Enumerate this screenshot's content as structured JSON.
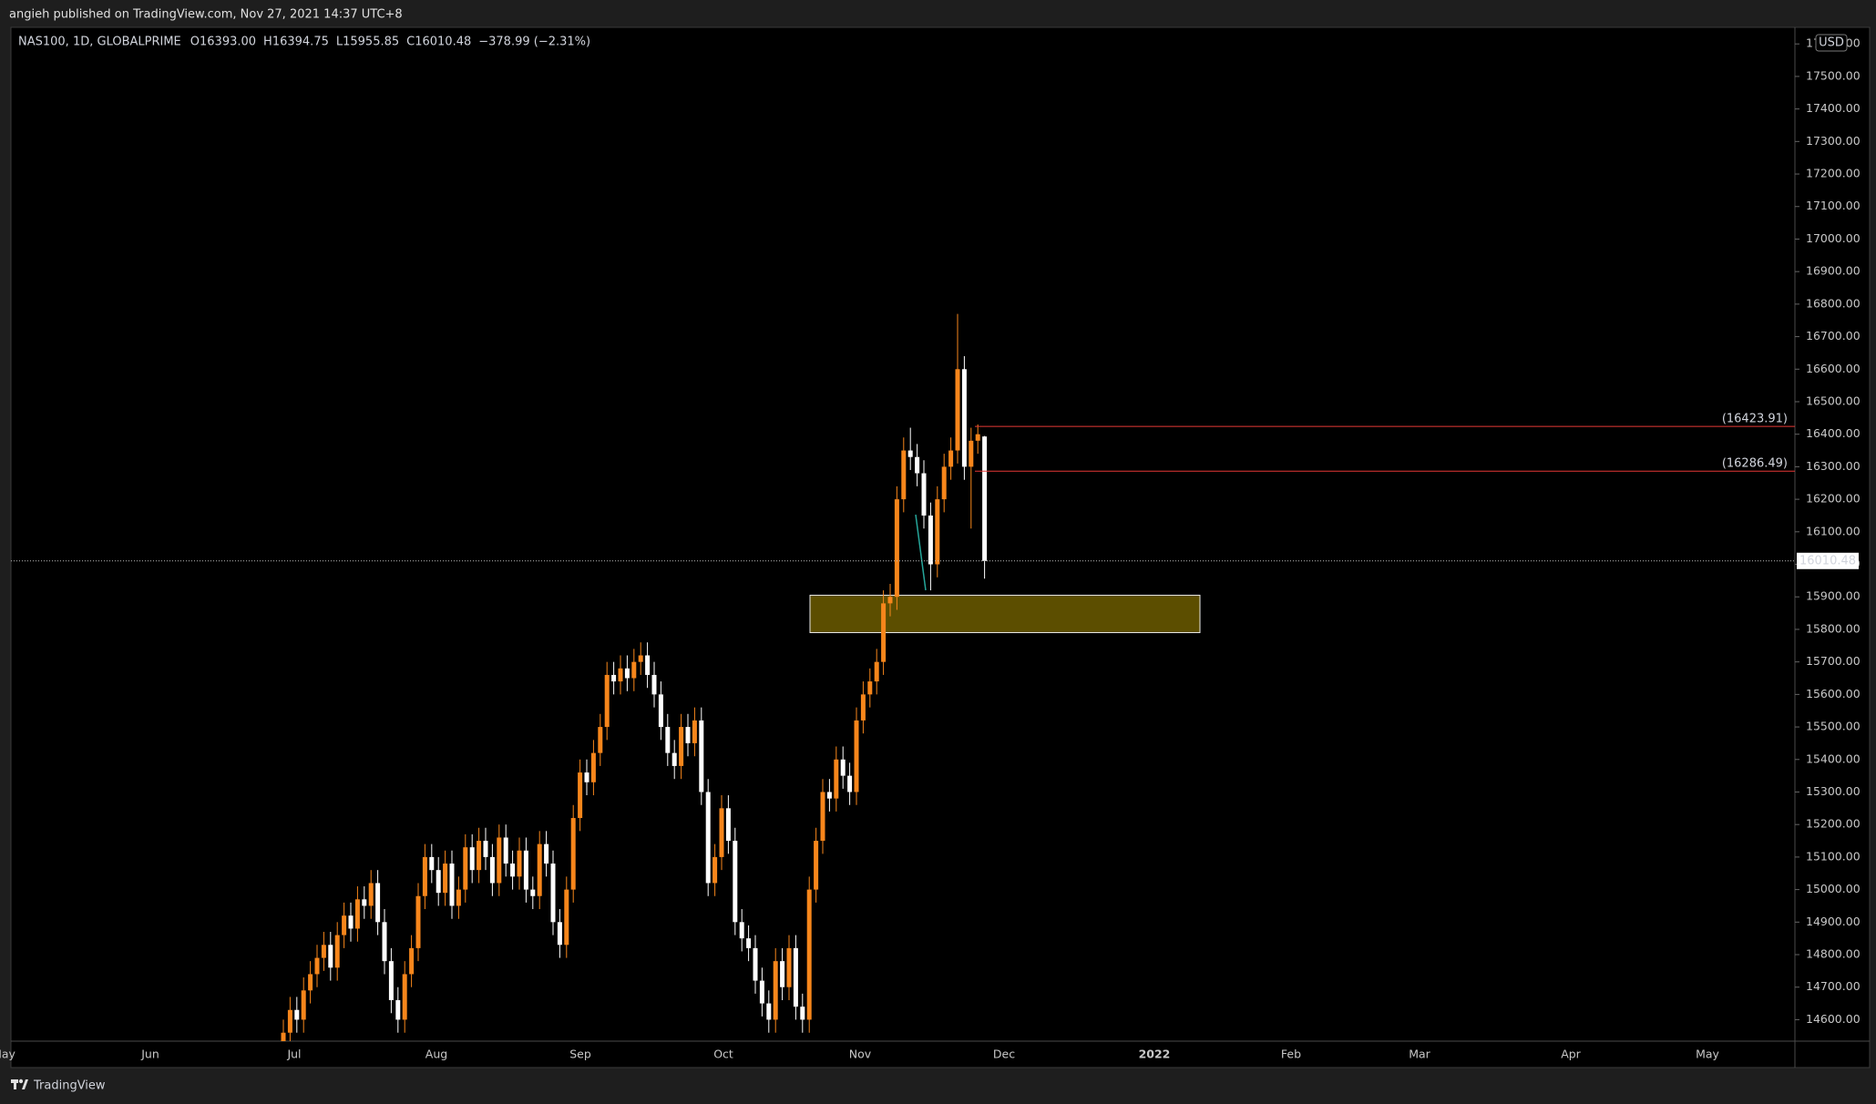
{
  "header": {
    "publisher": "angieh published on TradingView.com, Nov 27, 2021 14:37 UTC+8"
  },
  "chart_data": {
    "type": "candlestick",
    "symbol": "NAS100, 1D, GLOBALPRIME",
    "legend_values": [
      {
        "label": "O",
        "value": "16393.00"
      },
      {
        "label": "H",
        "value": "16394.75"
      },
      {
        "label": "L",
        "value": "15955.85"
      },
      {
        "label": "C",
        "value": "16010.48"
      }
    ],
    "change": "−378.99 (−2.31%)",
    "currency": "USD",
    "up_color": "#f7861b",
    "down_color": "#ffffff",
    "open": [
      14500,
      14560,
      14630,
      14600,
      14690,
      14740,
      14790,
      14830,
      14760,
      14860,
      14920,
      14880,
      14970,
      14950,
      15020,
      14900,
      14780,
      14660,
      14600,
      14740,
      14820,
      14980,
      15100,
      15060,
      14990,
      15080,
      14950,
      15000,
      15130,
      15060,
      15150,
      15100,
      15020,
      15160,
      15080,
      15040,
      15120,
      15000,
      14980,
      15140,
      15080,
      14900,
      14830,
      15000,
      15220,
      15360,
      15330,
      15420,
      15500,
      15660,
      15640,
      15680,
      15650,
      15700,
      15720,
      15660,
      15600,
      15500,
      15420,
      15380,
      15500,
      15450,
      15520,
      15300,
      15020,
      15100,
      15250,
      15150,
      14900,
      14850,
      14820,
      14720,
      14650,
      14600,
      14780,
      14700,
      14820,
      14640,
      14600,
      15000,
      15150,
      15300,
      15280,
      15400,
      15350,
      15300,
      15520,
      15600,
      15640,
      15700,
      15880,
      15900,
      16200,
      16350,
      16330,
      16280,
      16150,
      16000,
      16200,
      16300,
      16350,
      16600,
      16300,
      16380,
      16393
    ],
    "high": [
      14600,
      14670,
      14670,
      14730,
      14780,
      14830,
      14870,
      14870,
      14900,
      14960,
      14960,
      15010,
      15010,
      15060,
      15060,
      14940,
      14820,
      14700,
      14780,
      14860,
      15020,
      15140,
      15140,
      15100,
      15120,
      15120,
      15040,
      15170,
      15170,
      15190,
      15190,
      15140,
      15200,
      15200,
      15120,
      15160,
      15160,
      15040,
      15180,
      15180,
      15120,
      14940,
      15040,
      15260,
      15400,
      15400,
      15460,
      15540,
      15700,
      15700,
      15720,
      15720,
      15740,
      15760,
      15760,
      15700,
      15640,
      15540,
      15460,
      15540,
      15540,
      15560,
      15560,
      15340,
      15140,
      15290,
      15290,
      15190,
      14940,
      14890,
      14860,
      14760,
      14690,
      14820,
      14820,
      14860,
      14860,
      14680,
      15040,
      15190,
      15340,
      15340,
      15440,
      15440,
      15390,
      15560,
      15640,
      15680,
      15740,
      15920,
      15940,
      16240,
      16390,
      16420,
      16370,
      16320,
      16190,
      16240,
      16340,
      16390,
      16770,
      16640,
      16420,
      16430,
      16394.75
    ],
    "low": [
      14460,
      14520,
      14560,
      14560,
      14650,
      14700,
      14750,
      14720,
      14720,
      14820,
      14840,
      14840,
      14910,
      14910,
      14860,
      14740,
      14620,
      14560,
      14560,
      14700,
      14780,
      14940,
      15020,
      14950,
      14950,
      14910,
      14910,
      14960,
      15020,
      15020,
      15060,
      14980,
      14980,
      15040,
      15000,
      15000,
      14960,
      14940,
      14940,
      15040,
      14860,
      14790,
      14790,
      14960,
      15180,
      15290,
      15290,
      15380,
      15460,
      15600,
      15600,
      15610,
      15610,
      15660,
      15620,
      15560,
      15460,
      15380,
      15340,
      15340,
      15410,
      15410,
      15260,
      14980,
      14980,
      15060,
      15110,
      14860,
      14810,
      14780,
      14680,
      14610,
      14560,
      14560,
      14660,
      14660,
      14600,
      14560,
      14560,
      14960,
      15110,
      15240,
      15240,
      15310,
      15260,
      15260,
      15480,
      15560,
      15600,
      15660,
      15840,
      15860,
      16160,
      16290,
      16240,
      16110,
      15920,
      15960,
      16160,
      16260,
      16310,
      16260,
      16110,
      16340,
      15955.85
    ],
    "close": [
      14560,
      14630,
      14600,
      14690,
      14740,
      14790,
      14830,
      14760,
      14860,
      14920,
      14880,
      14970,
      14950,
      15020,
      14900,
      14780,
      14660,
      14600,
      14740,
      14820,
      14980,
      15100,
      15060,
      14990,
      15080,
      14950,
      15000,
      15130,
      15060,
      15150,
      15100,
      15020,
      15160,
      15080,
      15040,
      15120,
      15000,
      14980,
      15140,
      15080,
      14900,
      14830,
      15000,
      15220,
      15360,
      15330,
      15420,
      15500,
      15660,
      15640,
      15680,
      15650,
      15700,
      15720,
      15660,
      15600,
      15500,
      15420,
      15380,
      15500,
      15450,
      15520,
      15300,
      15020,
      15100,
      15250,
      15150,
      14900,
      14850,
      14820,
      14720,
      14650,
      14600,
      14780,
      14700,
      14820,
      14640,
      14600,
      15000,
      15150,
      15300,
      15280,
      15400,
      15350,
      15300,
      15520,
      15600,
      15640,
      15700,
      15880,
      15900,
      16200,
      16350,
      16330,
      16280,
      16150,
      16000,
      16200,
      16300,
      16350,
      16600,
      16300,
      16380,
      16400,
      16010.48
    ],
    "ylim": [
      14534,
      17651
    ],
    "yticks": [
      {
        "value": 14600,
        "label": "14600.00"
      },
      {
        "value": 14700,
        "label": "14700.00"
      },
      {
        "value": 14800,
        "label": "14800.00"
      },
      {
        "value": 14900,
        "label": "14900.00"
      },
      {
        "value": 15000,
        "label": "15000.00"
      },
      {
        "value": 15100,
        "label": "15100.00"
      },
      {
        "value": 15200,
        "label": "15200.00"
      },
      {
        "value": 15300,
        "label": "15300.00"
      },
      {
        "value": 15400,
        "label": "15400.00"
      },
      {
        "value": 15500,
        "label": "15500.00"
      },
      {
        "value": 15600,
        "label": "15600.00"
      },
      {
        "value": 15700,
        "label": "15700.00"
      },
      {
        "value": 15800,
        "label": "15800.00"
      },
      {
        "value": 15900,
        "label": "15900.00"
      },
      {
        "value": 16000,
        "label": "16000.00"
      },
      {
        "value": 16100,
        "label": "16100.00"
      },
      {
        "value": 16200,
        "label": "16200.00"
      },
      {
        "value": 16300,
        "label": "16300.00"
      },
      {
        "value": 16400,
        "label": "16400.00"
      },
      {
        "value": 16500,
        "label": "16500.00"
      },
      {
        "value": 16600,
        "label": "16600.00"
      },
      {
        "value": 16700,
        "label": "16700.00"
      },
      {
        "value": 16800,
        "label": "16800.00"
      },
      {
        "value": 16900,
        "label": "16900.00"
      },
      {
        "value": 17000,
        "label": "17000.00"
      },
      {
        "value": 17100,
        "label": "17100.00"
      },
      {
        "value": 17200,
        "label": "17200.00"
      },
      {
        "value": 17300,
        "label": "17300.00"
      },
      {
        "value": 17400,
        "label": "17400.00"
      },
      {
        "value": 17500,
        "label": "17500.00"
      },
      {
        "value": 17600,
        "label": "17600.00"
      }
    ],
    "x_labels": [
      "May",
      "Jun",
      "Jul",
      "Aug",
      "Sep",
      "Oct",
      "Nov",
      "Dec",
      "2022",
      "Feb",
      "Mar",
      "Apr",
      "May"
    ],
    "levels": [
      {
        "value": 16423.91,
        "label": "(16423.91)",
        "color": "#e53935"
      },
      {
        "value": 16286.49,
        "label": "(16286.49)",
        "color": "#e53935"
      }
    ],
    "last_price": {
      "value": 16010.48,
      "label": "16010.48"
    },
    "zone": {
      "low": 15790,
      "high": 15905,
      "color": "#5c4e00"
    }
  },
  "footer": {
    "brand": "TradingView"
  }
}
